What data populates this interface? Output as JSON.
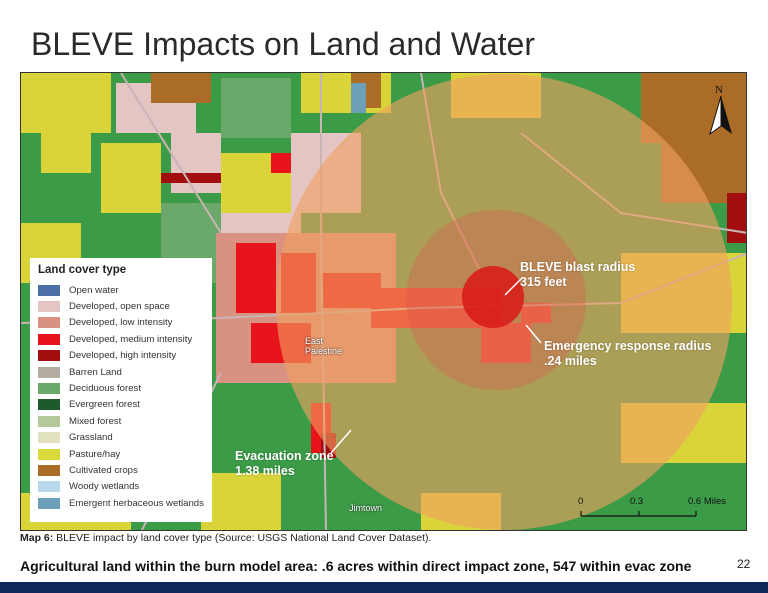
{
  "title": "BLEVE Impacts on Land and Water",
  "legend": {
    "title": "Land cover type",
    "items": [
      {
        "label": "Open water",
        "color": "#4a6fa5"
      },
      {
        "label": "Developed, open space",
        "color": "#e3c6c4"
      },
      {
        "label": "Developed, low intensity",
        "color": "#d99282"
      },
      {
        "label": "Developed, medium intensity",
        "color": "#e8141c"
      },
      {
        "label": "Developed, high intensity",
        "color": "#a20d10"
      },
      {
        "label": "Barren Land",
        "color": "#b3aca3"
      },
      {
        "label": "Deciduous forest",
        "color": "#6aa96a"
      },
      {
        "label": "Evergreen forest",
        "color": "#1f5a2c"
      },
      {
        "label": "Mixed forest",
        "color": "#b5c99a"
      },
      {
        "label": "Grassland",
        "color": "#e2e2c1"
      },
      {
        "label": "Pasture/hay",
        "color": "#dcd93a"
      },
      {
        "label": "Cultivated crops",
        "color": "#ab6c28"
      },
      {
        "label": "Woody wetlands",
        "color": "#b8d9eb"
      },
      {
        "label": "Emergent herbaceous wetlands",
        "color": "#6c9fb8"
      }
    ]
  },
  "annotations": {
    "blast_radius": {
      "title": "BLEVE blast radius",
      "value": "315 feet"
    },
    "emergency_radius": {
      "title": "Emergency response radius",
      "value": ".24 miles"
    },
    "evacuation": {
      "title": "Evacuation zone",
      "value": "1.38 miles"
    }
  },
  "places": {
    "town_a_line1": "East",
    "town_a_line2": "Palestine",
    "town_b": "Jimtown"
  },
  "north_arrow": "N",
  "scale": {
    "ticks": [
      "0",
      "0.3",
      "0.6 Miles"
    ]
  },
  "caption": {
    "label": "Map 6:",
    "text": " BLEVE impact by land cover type (Source: USGS National Land Cover Dataset)."
  },
  "summary": "Agricultural land within the burn model area: .6 acres within direct impact zone, 547 within evac zone",
  "page_number": "22",
  "colors": {
    "footer": "#0d2a5c",
    "evac_zone": "#f0a060",
    "emergency_zone": "#e05050",
    "blast_zone": "#d81818"
  }
}
